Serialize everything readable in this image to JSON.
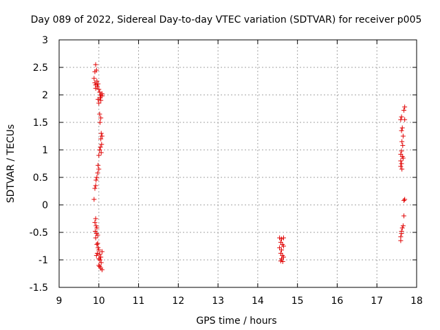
{
  "chart_data": {
    "type": "scatter",
    "title": "Day 089 of 2022, Sidereal Day-to-day VTEC variation (SDTVAR) for receiver p005",
    "xlabel": "GPS time / hours",
    "ylabel": "SDTVAR / TECUs",
    "xlim": [
      9,
      18
    ],
    "ylim": [
      -1.5,
      3
    ],
    "xticks": [
      "9",
      "10",
      "11",
      "12",
      "13",
      "14",
      "15",
      "16",
      "17",
      "18"
    ],
    "yticks": [
      "3",
      "2.5",
      "2",
      "1.5",
      "1",
      "0.5",
      "0",
      "-0.5",
      "-1",
      "-1.5"
    ],
    "grid": true,
    "marker": "+",
    "marker_color": "#e00000",
    "series": [
      {
        "name": "SDTVAR",
        "points": [
          [
            9.92,
            2.55
          ],
          [
            9.9,
            2.42
          ],
          [
            9.94,
            2.45
          ],
          [
            9.88,
            2.3
          ],
          [
            9.9,
            2.22
          ],
          [
            9.92,
            2.18
          ],
          [
            9.95,
            2.25
          ],
          [
            9.98,
            2.2
          ],
          [
            9.92,
            2.12
          ],
          [
            9.96,
            2.15
          ],
          [
            10.0,
            2.1
          ],
          [
            10.02,
            2.05
          ],
          [
            10.05,
            2.0
          ],
          [
            10.08,
            1.98
          ],
          [
            10.03,
            1.95
          ],
          [
            9.98,
            1.92
          ],
          [
            10.05,
            1.9
          ],
          [
            10.08,
            2.02
          ],
          [
            10.0,
            1.85
          ],
          [
            10.02,
            1.65
          ],
          [
            10.05,
            1.58
          ],
          [
            10.03,
            1.5
          ],
          [
            10.06,
            1.3
          ],
          [
            10.08,
            1.25
          ],
          [
            10.05,
            1.2
          ],
          [
            10.07,
            1.1
          ],
          [
            10.04,
            1.05
          ],
          [
            10.02,
            1.0
          ],
          [
            10.06,
            0.95
          ],
          [
            10.0,
            0.9
          ],
          [
            9.98,
            0.72
          ],
          [
            10.0,
            0.65
          ],
          [
            9.97,
            0.58
          ],
          [
            9.95,
            0.5
          ],
          [
            9.93,
            0.45
          ],
          [
            9.92,
            0.35
          ],
          [
            9.9,
            0.3
          ],
          [
            9.88,
            0.1
          ],
          [
            9.92,
            -0.25
          ],
          [
            9.9,
            -0.32
          ],
          [
            9.93,
            -0.38
          ],
          [
            9.95,
            -0.42
          ],
          [
            9.91,
            -0.48
          ],
          [
            9.94,
            -0.52
          ],
          [
            9.97,
            -0.55
          ],
          [
            9.92,
            -0.6
          ],
          [
            9.95,
            -0.72
          ],
          [
            9.98,
            -0.78
          ],
          [
            10.0,
            -0.82
          ],
          [
            9.96,
            -0.88
          ],
          [
            10.02,
            -0.9
          ],
          [
            9.94,
            -0.92
          ],
          [
            10.05,
            -0.95
          ],
          [
            10.0,
            -0.98
          ],
          [
            10.08,
            -0.85
          ],
          [
            10.03,
            -1.0
          ],
          [
            10.06,
            -1.05
          ],
          [
            10.0,
            -1.1
          ],
          [
            10.05,
            -1.15
          ],
          [
            10.08,
            -1.18
          ],
          [
            10.02,
            -1.12
          ],
          [
            9.97,
            -0.7
          ],
          [
            14.55,
            -0.6
          ],
          [
            14.6,
            -0.62
          ],
          [
            14.65,
            -0.6
          ],
          [
            14.58,
            -0.68
          ],
          [
            14.62,
            -0.72
          ],
          [
            14.55,
            -0.78
          ],
          [
            14.6,
            -0.82
          ],
          [
            14.65,
            -0.75
          ],
          [
            14.58,
            -0.88
          ],
          [
            14.62,
            -0.92
          ],
          [
            14.65,
            -0.95
          ],
          [
            14.6,
            -0.98
          ],
          [
            14.58,
            -1.02
          ],
          [
            14.63,
            -1.03
          ],
          [
            17.62,
            1.6
          ],
          [
            17.6,
            1.55
          ],
          [
            17.64,
            1.4
          ],
          [
            17.62,
            1.35
          ],
          [
            17.66,
            1.25
          ],
          [
            17.63,
            1.15
          ],
          [
            17.65,
            1.08
          ],
          [
            17.62,
            0.98
          ],
          [
            17.6,
            0.92
          ],
          [
            17.64,
            0.88
          ],
          [
            17.6,
            0.8
          ],
          [
            17.62,
            0.75
          ],
          [
            17.6,
            0.7
          ],
          [
            17.63,
            0.65
          ],
          [
            17.66,
            0.85
          ],
          [
            17.7,
            1.78
          ],
          [
            17.68,
            1.72
          ],
          [
            17.7,
            1.55
          ],
          [
            17.7,
            0.1
          ],
          [
            17.68,
            0.08
          ],
          [
            17.68,
            -0.2
          ],
          [
            17.66,
            -0.38
          ],
          [
            17.64,
            -0.42
          ],
          [
            17.62,
            -0.48
          ],
          [
            17.62,
            -0.52
          ],
          [
            17.6,
            -0.58
          ],
          [
            17.6,
            -0.65
          ]
        ]
      }
    ]
  }
}
